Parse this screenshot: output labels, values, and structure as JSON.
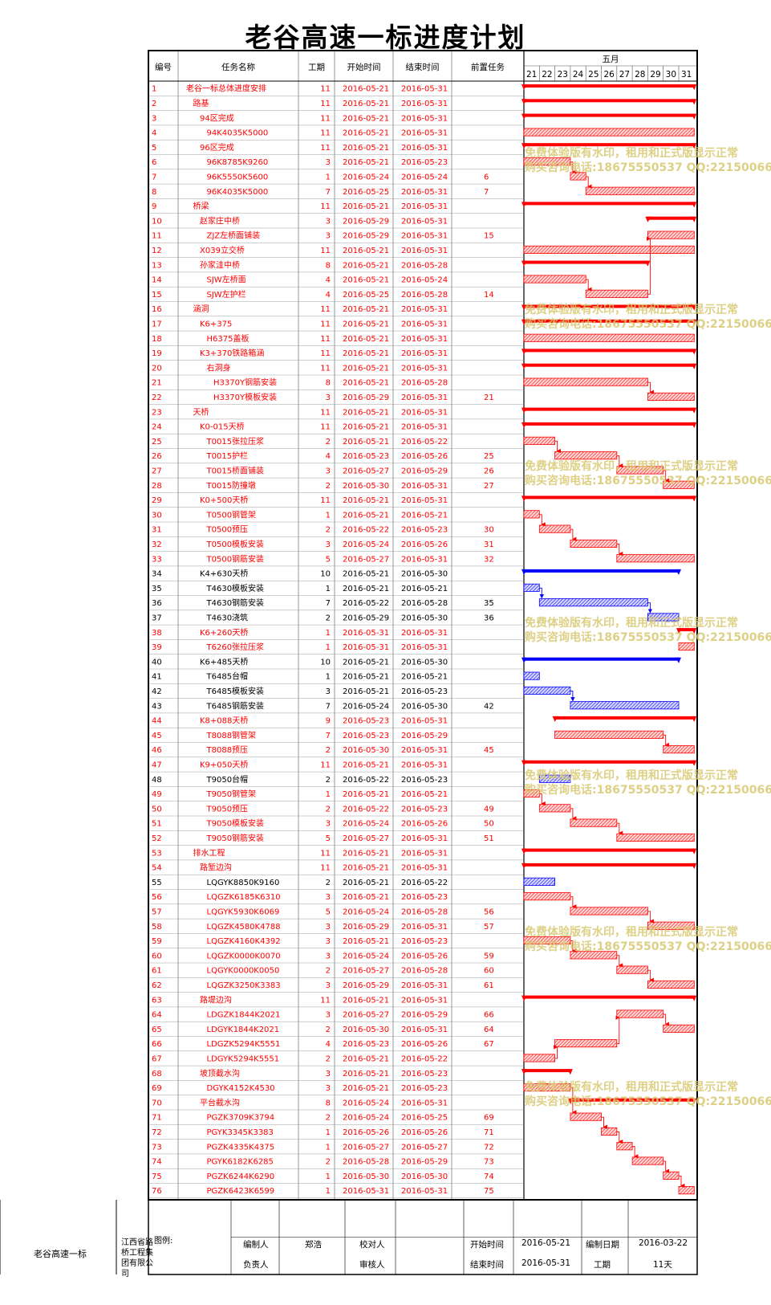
{
  "title": "老谷高速一标进度计划",
  "columns": [
    "编号",
    "任务名称",
    "工期",
    "开始时间",
    "结束时间",
    "前置任务"
  ],
  "timeline": {
    "month": "五月",
    "days": [
      "21",
      "22",
      "23",
      "24",
      "25",
      "26",
      "27",
      "28",
      "29",
      "30",
      "31"
    ]
  },
  "colors": {
    "critical": "#ff0000",
    "normal": "#0000ff",
    "watermark": "#d8c870"
  },
  "watermark": {
    "line1": "免费体验版有水印，租用和正式版显示正常",
    "line2": "购买咨询电话:18675550537 QQ:22150066"
  },
  "footer": {
    "project": "老谷高速一标",
    "company": "江西省路桥工程集团有限公司",
    "legend": "图例:",
    "editor_label": "编制人",
    "editor": "郑浩",
    "checker_label": "校对人",
    "checker": "",
    "owner_label": "负责人",
    "owner": "",
    "reviewer_label": "审核人",
    "reviewer": "",
    "start_label": "开始时间",
    "start": "2016-05-21",
    "end_label": "结束时间",
    "end": "2016-05-31",
    "made_label": "编制日期",
    "made": "2016-03-22",
    "dur_label": "工期",
    "dur": "11天"
  },
  "chart_data": {
    "type": "table",
    "title": "老谷高速一标进度计划",
    "timeline_range": [
      "2016-05-21",
      "2016-05-31"
    ],
    "tasks": [
      {
        "id": "1",
        "name": "老谷一标总体进度安排",
        "level": 0,
        "dur": "11",
        "start": "2016-05-21",
        "end": "2016-05-31",
        "pred": "",
        "summary": true,
        "critical": true
      },
      {
        "id": "2",
        "name": "路基",
        "level": 1,
        "dur": "11",
        "start": "2016-05-21",
        "end": "2016-05-31",
        "pred": "",
        "summary": true,
        "critical": true
      },
      {
        "id": "3",
        "name": "94区完成",
        "level": 2,
        "dur": "11",
        "start": "2016-05-21",
        "end": "2016-05-31",
        "pred": "",
        "summary": true,
        "critical": true
      },
      {
        "id": "4",
        "name": "94K4035K5000",
        "level": 3,
        "dur": "11",
        "start": "2016-05-21",
        "end": "2016-05-31",
        "pred": "",
        "summary": false,
        "critical": true
      },
      {
        "id": "5",
        "name": "96区完成",
        "level": 2,
        "dur": "11",
        "start": "2016-05-21",
        "end": "2016-05-31",
        "pred": "",
        "summary": true,
        "critical": true
      },
      {
        "id": "6",
        "name": "96K8785K9260",
        "level": 3,
        "dur": "3",
        "start": "2016-05-21",
        "end": "2016-05-23",
        "pred": "",
        "summary": false,
        "critical": true
      },
      {
        "id": "7",
        "name": "96K5550K5600",
        "level": 3,
        "dur": "1",
        "start": "2016-05-24",
        "end": "2016-05-24",
        "pred": "6",
        "summary": false,
        "critical": true
      },
      {
        "id": "8",
        "name": "96K4035K5000",
        "level": 3,
        "dur": "7",
        "start": "2016-05-25",
        "end": "2016-05-31",
        "pred": "7",
        "summary": false,
        "critical": true
      },
      {
        "id": "9",
        "name": "桥梁",
        "level": 1,
        "dur": "11",
        "start": "2016-05-21",
        "end": "2016-05-31",
        "pred": "",
        "summary": true,
        "critical": true
      },
      {
        "id": "10",
        "name": "赵家庄中桥",
        "level": 2,
        "dur": "3",
        "start": "2016-05-29",
        "end": "2016-05-31",
        "pred": "",
        "summary": true,
        "critical": true
      },
      {
        "id": "11",
        "name": "ZJZ左桥面铺装",
        "level": 3,
        "dur": "3",
        "start": "2016-05-29",
        "end": "2016-05-31",
        "pred": "15",
        "summary": false,
        "critical": true
      },
      {
        "id": "12",
        "name": "X039立交桥",
        "level": 2,
        "dur": "11",
        "start": "2016-05-21",
        "end": "2016-05-31",
        "pred": "",
        "summary": false,
        "critical": true
      },
      {
        "id": "13",
        "name": "孙家洼中桥",
        "level": 2,
        "dur": "8",
        "start": "2016-05-21",
        "end": "2016-05-28",
        "pred": "",
        "summary": true,
        "critical": true
      },
      {
        "id": "14",
        "name": "SJW左桥面",
        "level": 3,
        "dur": "4",
        "start": "2016-05-21",
        "end": "2016-05-24",
        "pred": "",
        "summary": false,
        "critical": true
      },
      {
        "id": "15",
        "name": "SJW左护栏",
        "level": 3,
        "dur": "4",
        "start": "2016-05-25",
        "end": "2016-05-28",
        "pred": "14",
        "summary": false,
        "critical": true
      },
      {
        "id": "16",
        "name": "涵洞",
        "level": 1,
        "dur": "11",
        "start": "2016-05-21",
        "end": "2016-05-31",
        "pred": "",
        "summary": true,
        "critical": true
      },
      {
        "id": "17",
        "name": "K6+375",
        "level": 2,
        "dur": "11",
        "start": "2016-05-21",
        "end": "2016-05-31",
        "pred": "",
        "summary": true,
        "critical": true
      },
      {
        "id": "18",
        "name": "H6375盖板",
        "level": 3,
        "dur": "11",
        "start": "2016-05-21",
        "end": "2016-05-31",
        "pred": "",
        "summary": false,
        "critical": true
      },
      {
        "id": "19",
        "name": "K3+370铁路箱涵",
        "level": 2,
        "dur": "11",
        "start": "2016-05-21",
        "end": "2016-05-31",
        "pred": "",
        "summary": true,
        "critical": true
      },
      {
        "id": "20",
        "name": "右洞身",
        "level": 3,
        "dur": "11",
        "start": "2016-05-21",
        "end": "2016-05-31",
        "pred": "",
        "summary": true,
        "critical": true
      },
      {
        "id": "21",
        "name": "H3370Y钢筋安装",
        "level": 4,
        "dur": "8",
        "start": "2016-05-21",
        "end": "2016-05-28",
        "pred": "",
        "summary": false,
        "critical": true
      },
      {
        "id": "22",
        "name": "H3370Y模板安装",
        "level": 4,
        "dur": "3",
        "start": "2016-05-29",
        "end": "2016-05-31",
        "pred": "21",
        "summary": false,
        "critical": true
      },
      {
        "id": "23",
        "name": "天桥",
        "level": 1,
        "dur": "11",
        "start": "2016-05-21",
        "end": "2016-05-31",
        "pred": "",
        "summary": true,
        "critical": true
      },
      {
        "id": "24",
        "name": "K0-015天桥",
        "level": 2,
        "dur": "11",
        "start": "2016-05-21",
        "end": "2016-05-31",
        "pred": "",
        "summary": true,
        "critical": true
      },
      {
        "id": "25",
        "name": "T0015张拉压浆",
        "level": 3,
        "dur": "2",
        "start": "2016-05-21",
        "end": "2016-05-22",
        "pred": "",
        "summary": false,
        "critical": true
      },
      {
        "id": "26",
        "name": "T0015护栏",
        "level": 3,
        "dur": "4",
        "start": "2016-05-23",
        "end": "2016-05-26",
        "pred": "25",
        "summary": false,
        "critical": true
      },
      {
        "id": "27",
        "name": "T0015桥面铺装",
        "level": 3,
        "dur": "3",
        "start": "2016-05-27",
        "end": "2016-05-29",
        "pred": "26",
        "summary": false,
        "critical": true
      },
      {
        "id": "28",
        "name": "T0015防撞墩",
        "level": 3,
        "dur": "2",
        "start": "2016-05-30",
        "end": "2016-05-31",
        "pred": "27",
        "summary": false,
        "critical": true
      },
      {
        "id": "29",
        "name": "K0+500天桥",
        "level": 2,
        "dur": "11",
        "start": "2016-05-21",
        "end": "2016-05-31",
        "pred": "",
        "summary": true,
        "critical": true
      },
      {
        "id": "30",
        "name": "T0500钢管架",
        "level": 3,
        "dur": "1",
        "start": "2016-05-21",
        "end": "2016-05-21",
        "pred": "",
        "summary": false,
        "critical": true
      },
      {
        "id": "31",
        "name": "T0500预压",
        "level": 3,
        "dur": "2",
        "start": "2016-05-22",
        "end": "2016-05-23",
        "pred": "30",
        "summary": false,
        "critical": true
      },
      {
        "id": "32",
        "name": "T0500模板安装",
        "level": 3,
        "dur": "3",
        "start": "2016-05-24",
        "end": "2016-05-26",
        "pred": "31",
        "summary": false,
        "critical": true
      },
      {
        "id": "33",
        "name": "T0500钢筋安装",
        "level": 3,
        "dur": "5",
        "start": "2016-05-27",
        "end": "2016-05-31",
        "pred": "32",
        "summary": false,
        "critical": true
      },
      {
        "id": "34",
        "name": "K4+630天桥",
        "level": 2,
        "dur": "10",
        "start": "2016-05-21",
        "end": "2016-05-30",
        "pred": "",
        "summary": true,
        "critical": false
      },
      {
        "id": "35",
        "name": "T4630模板安装",
        "level": 3,
        "dur": "1",
        "start": "2016-05-21",
        "end": "2016-05-21",
        "pred": "",
        "summary": false,
        "critical": false
      },
      {
        "id": "36",
        "name": "T4630钢筋安装",
        "level": 3,
        "dur": "7",
        "start": "2016-05-22",
        "end": "2016-05-28",
        "pred": "35",
        "summary": false,
        "critical": false
      },
      {
        "id": "37",
        "name": "T4630浇筑",
        "level": 3,
        "dur": "2",
        "start": "2016-05-29",
        "end": "2016-05-30",
        "pred": "36",
        "summary": false,
        "critical": false
      },
      {
        "id": "38",
        "name": "K6+260天桥",
        "level": 2,
        "dur": "1",
        "start": "2016-05-31",
        "end": "2016-05-31",
        "pred": "",
        "summary": true,
        "critical": true
      },
      {
        "id": "39",
        "name": "T6260张拉压浆",
        "level": 3,
        "dur": "1",
        "start": "2016-05-31",
        "end": "2016-05-31",
        "pred": "",
        "summary": false,
        "critical": true
      },
      {
        "id": "40",
        "name": "K6+485天桥",
        "level": 2,
        "dur": "10",
        "start": "2016-05-21",
        "end": "2016-05-30",
        "pred": "",
        "summary": true,
        "critical": false
      },
      {
        "id": "41",
        "name": "T6485台帽",
        "level": 3,
        "dur": "1",
        "start": "2016-05-21",
        "end": "2016-05-21",
        "pred": "",
        "summary": false,
        "critical": false
      },
      {
        "id": "42",
        "name": "T6485模板安装",
        "level": 3,
        "dur": "3",
        "start": "2016-05-21",
        "end": "2016-05-23",
        "pred": "",
        "summary": false,
        "critical": false
      },
      {
        "id": "43",
        "name": "T6485钢筋安装",
        "level": 3,
        "dur": "7",
        "start": "2016-05-24",
        "end": "2016-05-30",
        "pred": "42",
        "summary": false,
        "critical": false
      },
      {
        "id": "44",
        "name": "K8+088天桥",
        "level": 2,
        "dur": "9",
        "start": "2016-05-23",
        "end": "2016-05-31",
        "pred": "",
        "summary": true,
        "critical": true
      },
      {
        "id": "45",
        "name": "T8088钢管架",
        "level": 3,
        "dur": "7",
        "start": "2016-05-23",
        "end": "2016-05-29",
        "pred": "",
        "summary": false,
        "critical": true
      },
      {
        "id": "46",
        "name": "T8088预压",
        "level": 3,
        "dur": "2",
        "start": "2016-05-30",
        "end": "2016-05-31",
        "pred": "45",
        "summary": false,
        "critical": true
      },
      {
        "id": "47",
        "name": "K9+050天桥",
        "level": 2,
        "dur": "11",
        "start": "2016-05-21",
        "end": "2016-05-31",
        "pred": "",
        "summary": true,
        "critical": true
      },
      {
        "id": "48",
        "name": "T9050台帽",
        "level": 3,
        "dur": "2",
        "start": "2016-05-22",
        "end": "2016-05-23",
        "pred": "",
        "summary": false,
        "critical": false
      },
      {
        "id": "49",
        "name": "T9050钢管架",
        "level": 3,
        "dur": "1",
        "start": "2016-05-21",
        "end": "2016-05-21",
        "pred": "",
        "summary": false,
        "critical": true
      },
      {
        "id": "50",
        "name": "T9050预压",
        "level": 3,
        "dur": "2",
        "start": "2016-05-22",
        "end": "2016-05-23",
        "pred": "49",
        "summary": false,
        "critical": true
      },
      {
        "id": "51",
        "name": "T9050模板安装",
        "level": 3,
        "dur": "3",
        "start": "2016-05-24",
        "end": "2016-05-26",
        "pred": "50",
        "summary": false,
        "critical": true
      },
      {
        "id": "52",
        "name": "T9050钢筋安装",
        "level": 3,
        "dur": "5",
        "start": "2016-05-27",
        "end": "2016-05-31",
        "pred": "51",
        "summary": false,
        "critical": true
      },
      {
        "id": "53",
        "name": "排水工程",
        "level": 1,
        "dur": "11",
        "start": "2016-05-21",
        "end": "2016-05-31",
        "pred": "",
        "summary": true,
        "critical": true
      },
      {
        "id": "54",
        "name": "路堑边沟",
        "level": 2,
        "dur": "11",
        "start": "2016-05-21",
        "end": "2016-05-31",
        "pred": "",
        "summary": true,
        "critical": true
      },
      {
        "id": "55",
        "name": "LQGYK8850K9160",
        "level": 3,
        "dur": "2",
        "start": "2016-05-21",
        "end": "2016-05-22",
        "pred": "",
        "summary": false,
        "critical": false
      },
      {
        "id": "56",
        "name": "LQGZK6185K6310",
        "level": 3,
        "dur": "3",
        "start": "2016-05-21",
        "end": "2016-05-23",
        "pred": "",
        "summary": false,
        "critical": true
      },
      {
        "id": "57",
        "name": "LQGYK5930K6069",
        "level": 3,
        "dur": "5",
        "start": "2016-05-24",
        "end": "2016-05-28",
        "pred": "56",
        "summary": false,
        "critical": true
      },
      {
        "id": "58",
        "name": "LQGZK4580K4788",
        "level": 3,
        "dur": "3",
        "start": "2016-05-29",
        "end": "2016-05-31",
        "pred": "57",
        "summary": false,
        "critical": true
      },
      {
        "id": "59",
        "name": "LQGZK4160K4392",
        "level": 3,
        "dur": "3",
        "start": "2016-05-21",
        "end": "2016-05-23",
        "pred": "",
        "summary": false,
        "critical": true
      },
      {
        "id": "60",
        "name": "LQGZK0000K0070",
        "level": 3,
        "dur": "3",
        "start": "2016-05-24",
        "end": "2016-05-26",
        "pred": "59",
        "summary": false,
        "critical": true
      },
      {
        "id": "61",
        "name": "LQGYK0000K0050",
        "level": 3,
        "dur": "2",
        "start": "2016-05-27",
        "end": "2016-05-28",
        "pred": "60",
        "summary": false,
        "critical": true
      },
      {
        "id": "62",
        "name": "LQGZK3250K3383",
        "level": 3,
        "dur": "3",
        "start": "2016-05-29",
        "end": "2016-05-31",
        "pred": "61",
        "summary": false,
        "critical": true
      },
      {
        "id": "63",
        "name": "路堤边沟",
        "level": 2,
        "dur": "11",
        "start": "2016-05-21",
        "end": "2016-05-31",
        "pred": "",
        "summary": true,
        "critical": true
      },
      {
        "id": "64",
        "name": "LDGZK1844K2021",
        "level": 3,
        "dur": "3",
        "start": "2016-05-27",
        "end": "2016-05-29",
        "pred": "66",
        "summary": false,
        "critical": true
      },
      {
        "id": "65",
        "name": "LDGYK1844K2021",
        "level": 3,
        "dur": "2",
        "start": "2016-05-30",
        "end": "2016-05-31",
        "pred": "64",
        "summary": false,
        "critical": true
      },
      {
        "id": "66",
        "name": "LDGZK5294K5551",
        "level": 3,
        "dur": "4",
        "start": "2016-05-23",
        "end": "2016-05-26",
        "pred": "67",
        "summary": false,
        "critical": true
      },
      {
        "id": "67",
        "name": "LDGYK5294K5551",
        "level": 3,
        "dur": "2",
        "start": "2016-05-21",
        "end": "2016-05-22",
        "pred": "",
        "summary": false,
        "critical": true
      },
      {
        "id": "68",
        "name": "坡顶截水沟",
        "level": 2,
        "dur": "3",
        "start": "2016-05-21",
        "end": "2016-05-23",
        "pred": "",
        "summary": true,
        "critical": true
      },
      {
        "id": "69",
        "name": "DGYK4152K4530",
        "level": 3,
        "dur": "3",
        "start": "2016-05-21",
        "end": "2016-05-23",
        "pred": "",
        "summary": false,
        "critical": true
      },
      {
        "id": "70",
        "name": "平台截水沟",
        "level": 2,
        "dur": "8",
        "start": "2016-05-24",
        "end": "2016-05-31",
        "pred": "",
        "summary": true,
        "critical": true
      },
      {
        "id": "71",
        "name": "PGZK3709K3794",
        "level": 3,
        "dur": "2",
        "start": "2016-05-24",
        "end": "2016-05-25",
        "pred": "69",
        "summary": false,
        "critical": true
      },
      {
        "id": "72",
        "name": "PGYK3345K3383",
        "level": 3,
        "dur": "1",
        "start": "2016-05-26",
        "end": "2016-05-26",
        "pred": "71",
        "summary": false,
        "critical": true
      },
      {
        "id": "73",
        "name": "PGZK4335K4375",
        "level": 3,
        "dur": "1",
        "start": "2016-05-27",
        "end": "2016-05-27",
        "pred": "72",
        "summary": false,
        "critical": true
      },
      {
        "id": "74",
        "name": "PGYK6182K6285",
        "level": 3,
        "dur": "2",
        "start": "2016-05-28",
        "end": "2016-05-29",
        "pred": "73",
        "summary": false,
        "critical": true
      },
      {
        "id": "75",
        "name": "PGZK6244K6290",
        "level": 3,
        "dur": "1",
        "start": "2016-05-30",
        "end": "2016-05-30",
        "pred": "74",
        "summary": false,
        "critical": true
      },
      {
        "id": "76",
        "name": "PGZK6423K6599",
        "level": 3,
        "dur": "1",
        "start": "2016-05-31",
        "end": "2016-05-31",
        "pred": "75",
        "summary": false,
        "critical": true
      }
    ]
  }
}
